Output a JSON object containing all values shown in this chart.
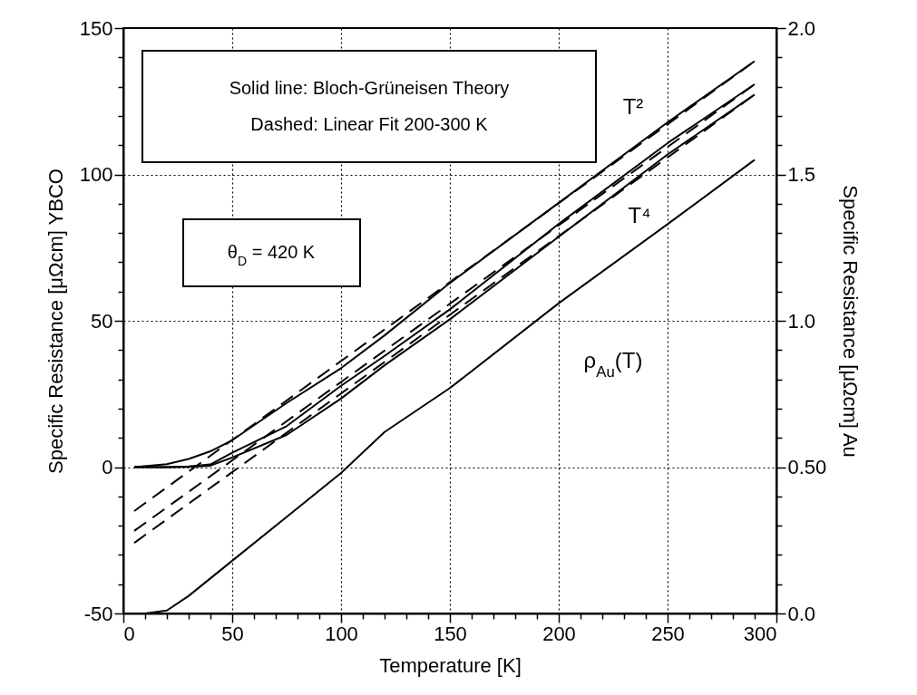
{
  "chart_data": {
    "type": "line",
    "xlabel": "Temperature [K]",
    "ylabel": "Specific Resistance [μΩcm] YBCO",
    "y2label": "Specific Resistance [μΩcm] Au",
    "xlim": [
      0,
      300
    ],
    "ylim": [
      -50,
      150
    ],
    "y2lim": [
      0,
      2
    ],
    "xticks": [
      0,
      {
        "value": 10,
        "label": null
      },
      {
        "value": 20,
        "label": null
      },
      {
        "value": 30,
        "label": null
      },
      {
        "value": 40,
        "label": null
      },
      50,
      {
        "value": 60,
        "label": null
      },
      {
        "value": 70,
        "label": null
      },
      {
        "value": 80,
        "label": null
      },
      {
        "value": 90,
        "label": null
      },
      100,
      {
        "value": 110,
        "label": null
      },
      {
        "value": 120,
        "label": null
      },
      {
        "value": 130,
        "label": null
      },
      {
        "value": 140,
        "label": null
      },
      150,
      {
        "value": 160,
        "label": null
      },
      {
        "value": 170,
        "label": null
      },
      {
        "value": 180,
        "label": null
      },
      {
        "value": 190,
        "label": null
      },
      200,
      {
        "value": 210,
        "label": null
      },
      {
        "value": 220,
        "label": null
      },
      {
        "value": 230,
        "label": null
      },
      {
        "value": 240,
        "label": null
      },
      250,
      {
        "value": 260,
        "label": null
      },
      {
        "value": 270,
        "label": null
      },
      {
        "value": 280,
        "label": null
      },
      {
        "value": 290,
        "label": null
      },
      300
    ],
    "yticks": [
      -50,
      {
        "value": -40,
        "label": null
      },
      {
        "value": -30,
        "label": null
      },
      {
        "value": -20,
        "label": null
      },
      {
        "value": -10,
        "label": null
      },
      0,
      {
        "value": 10,
        "label": null
      },
      {
        "value": 20,
        "label": null
      },
      {
        "value": 30,
        "label": null
      },
      {
        "value": 40,
        "label": null
      },
      50,
      {
        "value": 60,
        "label": null
      },
      {
        "value": 70,
        "label": null
      },
      {
        "value": 80,
        "label": null
      },
      {
        "value": 90,
        "label": null
      },
      100,
      {
        "value": 110,
        "label": null
      },
      {
        "value": 120,
        "label": null
      },
      {
        "value": 130,
        "label": null
      },
      {
        "value": 140,
        "label": null
      },
      150
    ],
    "y2ticks": [
      {
        "value": 0,
        "label": "0.0"
      },
      {
        "value": 0.1,
        "label": null
      },
      {
        "value": 0.2,
        "label": null
      },
      {
        "value": 0.3,
        "label": null
      },
      {
        "value": 0.4,
        "label": null
      },
      {
        "value": 0.5,
        "label": "0.50"
      },
      {
        "value": 0.6,
        "label": null
      },
      {
        "value": 0.7,
        "label": null
      },
      {
        "value": 0.8,
        "label": null
      },
      {
        "value": 0.9,
        "label": null
      },
      {
        "value": 1,
        "label": "1.0"
      },
      {
        "value": 1.1,
        "label": null
      },
      {
        "value": 1.2,
        "label": null
      },
      {
        "value": 1.3,
        "label": null
      },
      {
        "value": 1.4,
        "label": null
      },
      1.5,
      {
        "value": 1.6,
        "label": null
      },
      {
        "value": 1.7,
        "label": null
      },
      {
        "value": 1.8,
        "label": null
      },
      {
        "value": 1.9,
        "label": null
      },
      {
        "value": 2,
        "label": "2.0"
      }
    ],
    "grid": true,
    "series": [
      {
        "color": "#000000",
        "x": [
          5,
          20,
          30,
          40,
          50,
          75,
          100,
          120,
          150,
          200,
          250,
          290
        ],
        "values": [
          0,
          1,
          2.8,
          5.4,
          9.2,
          21.9,
          33.8,
          45,
          62.9,
          90.3,
          117.8,
          138.7
        ]
      },
      {
        "color": "#000000",
        "x": [
          5,
          20,
          30,
          40,
          50,
          75,
          100,
          120,
          150,
          200,
          250,
          290
        ],
        "values": [
          0,
          0,
          0.2,
          0.9,
          4.9,
          14,
          27.8,
          38,
          53.9,
          83.1,
          110.7,
          130.8
        ]
      },
      {
        "color": "#000000",
        "x": [
          5,
          20,
          30,
          40,
          50,
          75,
          100,
          120,
          150,
          200,
          250,
          290
        ],
        "values": [
          0,
          0,
          0.1,
          0.5,
          3.3,
          11,
          23.4,
          34.8,
          50.5,
          78.7,
          106.8,
          127.3
        ]
      },
      {
        "color": "#000000",
        "line_style": "dashed",
        "x": [
          5,
          290
        ],
        "values": [
          -15,
          138.7
        ]
      },
      {
        "color": "#000000",
        "line_style": "dashed",
        "x": [
          5,
          290
        ],
        "values": [
          -21.8,
          130.8
        ]
      },
      {
        "color": "#000000",
        "line_style": "dashed",
        "x": [
          5,
          290
        ],
        "values": [
          -25.9,
          127.3
        ]
      },
      {
        "color": "#000000",
        "axis": "y2",
        "x": [
          10,
          20,
          30,
          50,
          75,
          100,
          120,
          150,
          200,
          250,
          290
        ],
        "values": [
          0,
          0.01,
          0.06,
          0.18,
          0.33,
          0.48,
          0.62,
          0.77,
          1.06,
          1.33,
          1.55
        ]
      }
    ],
    "annotations": [
      "Solid line: Bloch-Grüneisen Theory",
      "Dashed: Linear Fit 200-300 K",
      "θ$_{D}$ = 420 K",
      "T²",
      "T⁴",
      "ρ$_{Au}$(T)"
    ]
  }
}
